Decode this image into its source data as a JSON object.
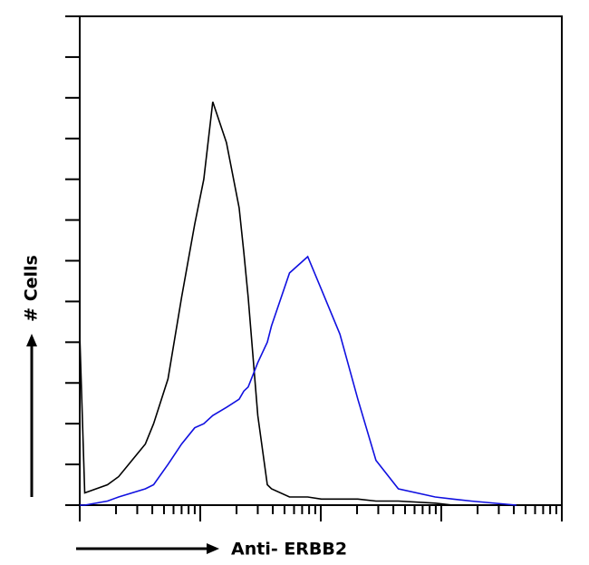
{
  "chart_data": {
    "type": "line",
    "x_label": "Anti- ERBB2",
    "y_label": "# Cells",
    "x": [
      1,
      1.1,
      1.7,
      2.1,
      3.5,
      4.1,
      5.4,
      7,
      9,
      10.7,
      12.7,
      16.5,
      21,
      23,
      25,
      30,
      36,
      39,
      55,
      78,
      101,
      144,
      203,
      287,
      440,
      890,
      1250,
      1770,
      4200
    ],
    "series": [
      {
        "color": "#000000",
        "values": [
          42,
          3,
          5,
          7,
          15,
          20,
          31,
          51,
          69,
          80,
          99,
          89,
          73,
          62,
          51,
          22,
          5,
          4,
          2,
          2,
          1.5,
          1.5,
          1.5,
          1,
          1,
          0.5,
          0,
          0,
          0
        ]
      },
      {
        "color": "#1010e0",
        "values": [
          0,
          0,
          1,
          2,
          4,
          5,
          10,
          15,
          19,
          20,
          22,
          24,
          26,
          28,
          29,
          35,
          40,
          44,
          57,
          61,
          53,
          42,
          26,
          11,
          4,
          2,
          1.5,
          1,
          0
        ]
      }
    ],
    "xlim": [
      1,
      10000
    ],
    "x_log": true,
    "xticks": [
      1,
      2,
      3,
      4,
      5,
      6,
      7,
      8,
      9,
      10,
      20,
      30,
      40,
      50,
      60,
      70,
      80,
      90,
      100,
      200,
      300,
      400,
      500,
      600,
      700,
      800,
      900,
      1000,
      2000,
      3000,
      4000,
      5000,
      6000,
      7000,
      8000,
      9000,
      10000
    ],
    "ylim": [
      0,
      120
    ],
    "yticks": [
      0,
      10,
      20,
      30,
      40,
      50,
      60,
      70,
      80,
      90,
      100,
      110,
      120
    ]
  }
}
